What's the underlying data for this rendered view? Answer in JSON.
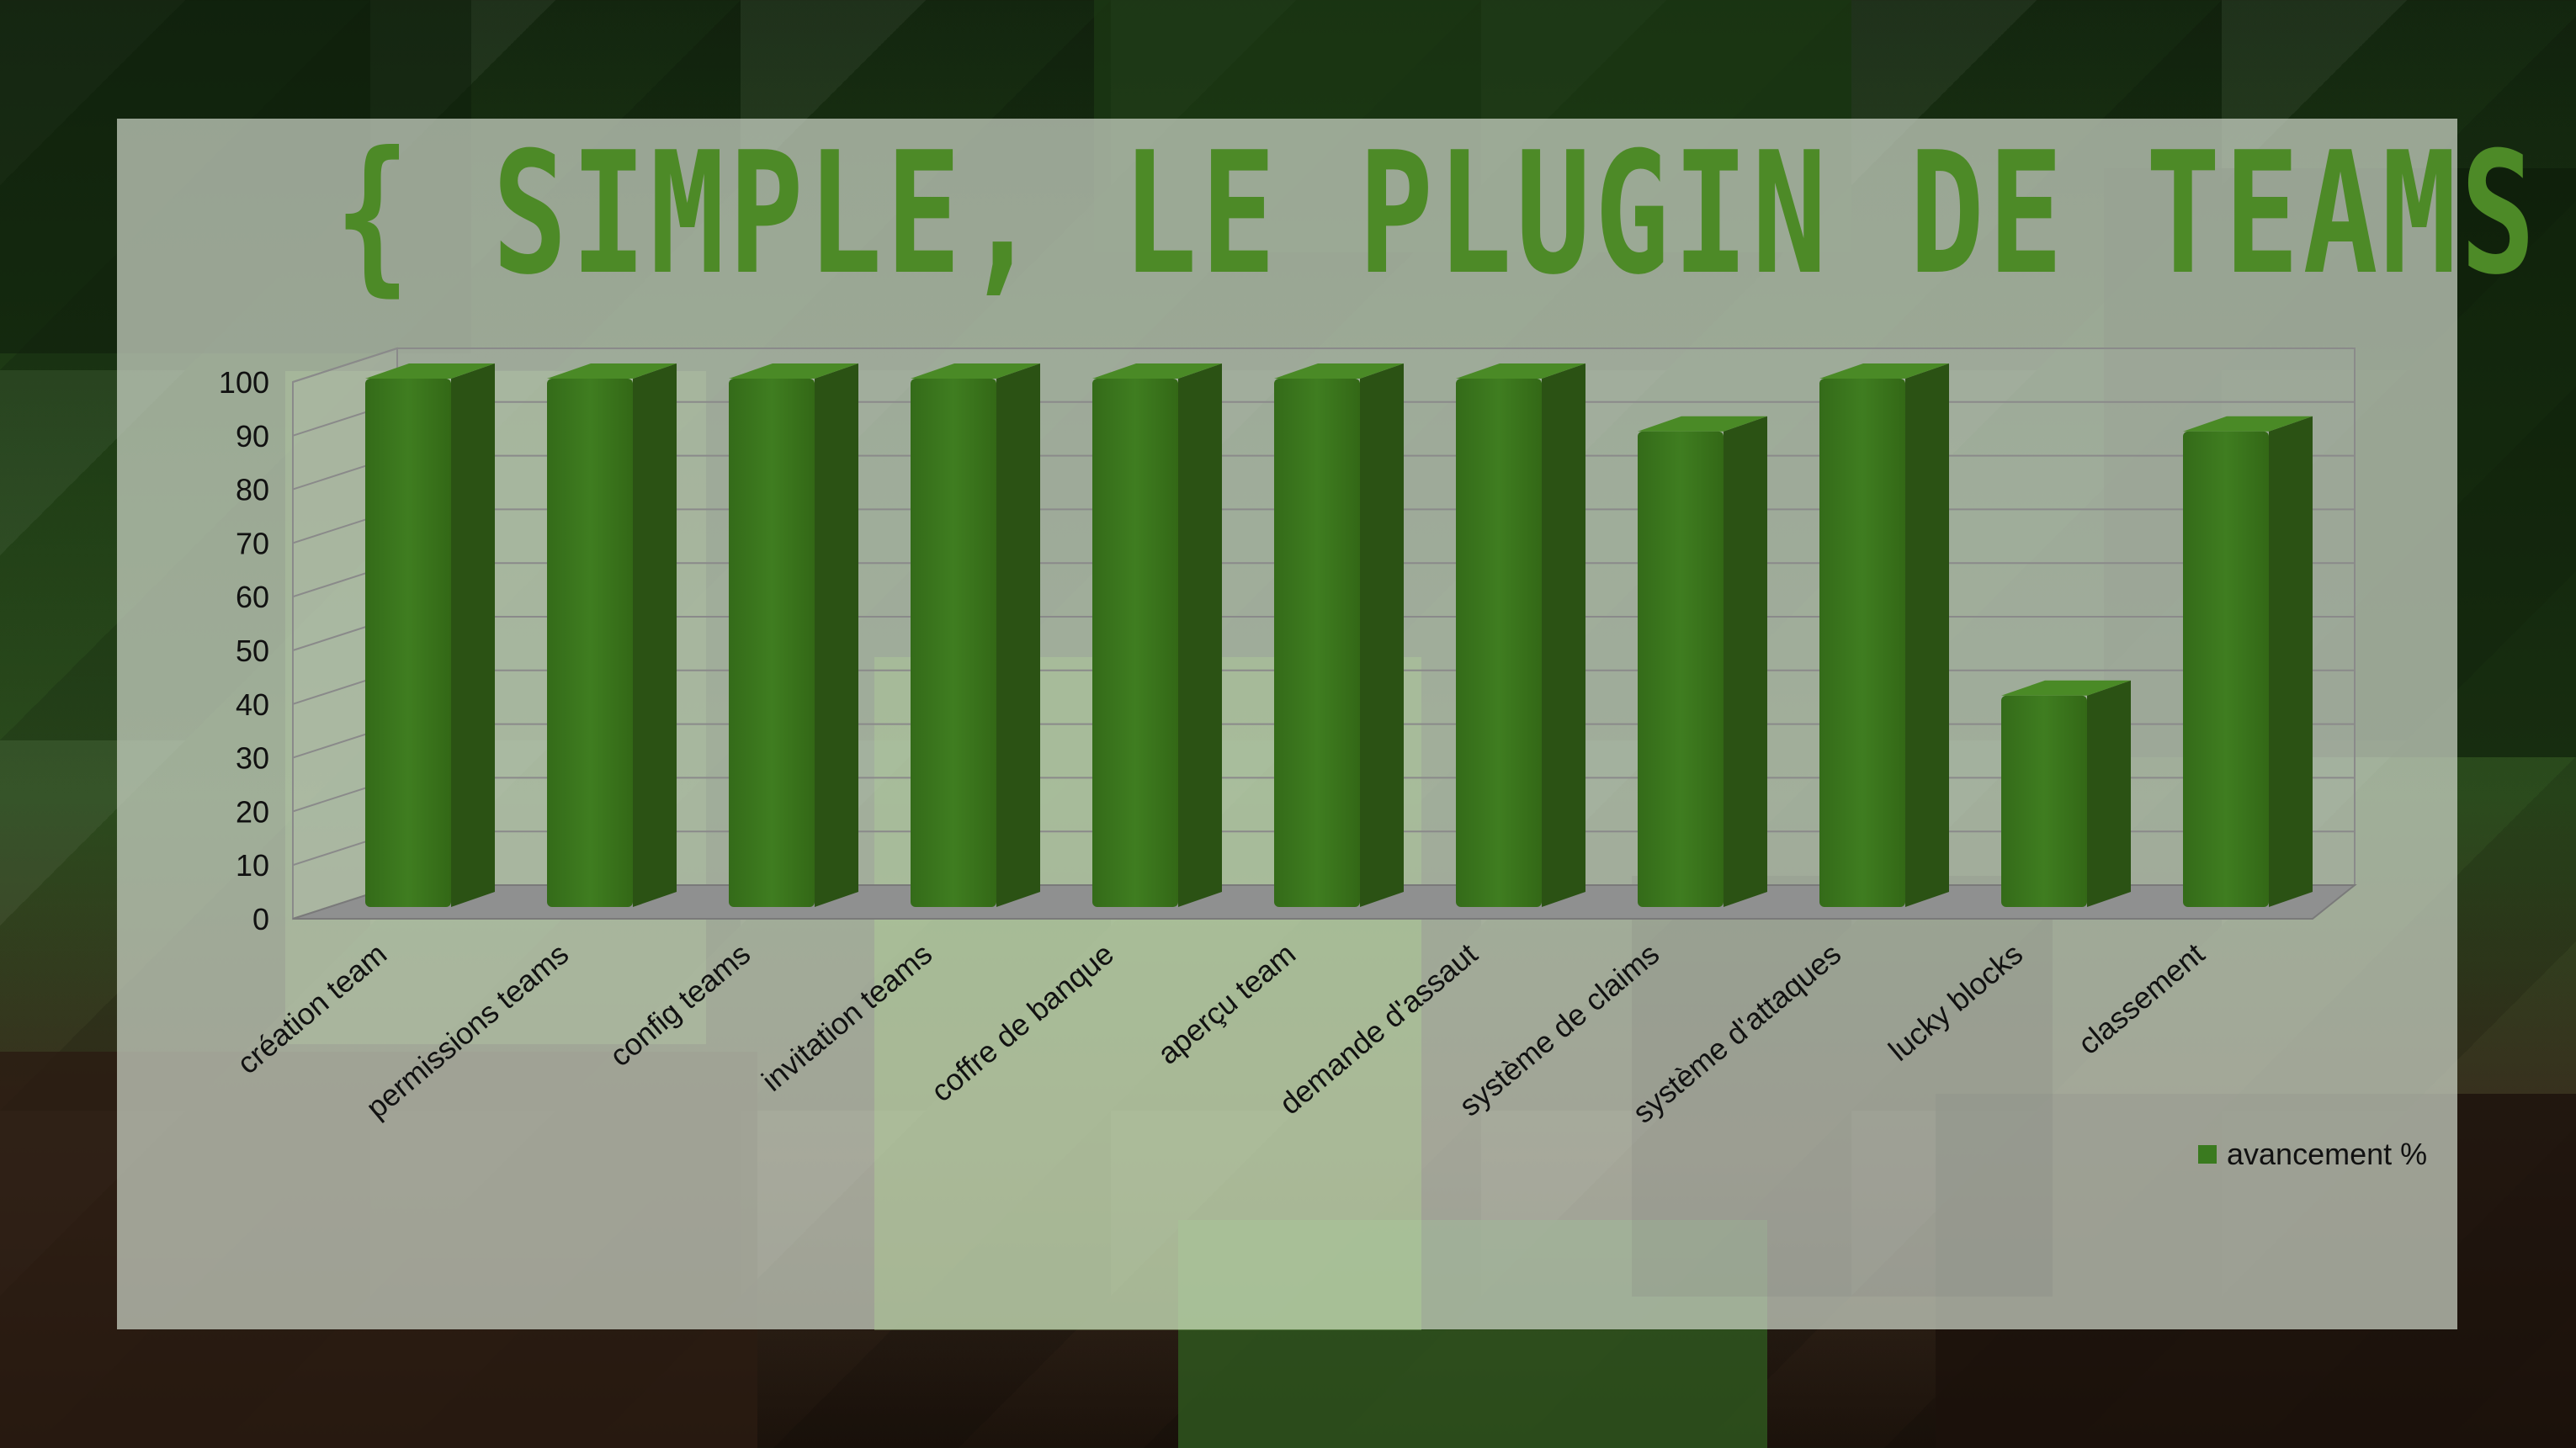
{
  "chart_data": {
    "type": "bar",
    "title": "{ SIMPLE, LE PLUGIN DE TEAMS }",
    "categories": [
      "création team",
      "permissions teams",
      "config teams",
      "invitation teams",
      "coffre de banque",
      "aperçu team",
      "demande d'assaut",
      "système de claims",
      "système d'attaques",
      "lucky blocks",
      "classement"
    ],
    "series": [
      {
        "name": "avancement %",
        "values": [
          100,
          100,
          100,
          100,
          100,
          100,
          100,
          90,
          100,
          40,
          90
        ]
      }
    ],
    "yticks": [
      0,
      10,
      20,
      30,
      40,
      50,
      60,
      70,
      80,
      90,
      100
    ],
    "ylim": [
      0,
      100
    ],
    "xlabel": "",
    "ylabel": "",
    "grid": true,
    "legend_position": "bottom-right",
    "colors": {
      "bar_front": "#3d7a1e",
      "bar_side": "#2b5214",
      "bar_top": "#4a8a26",
      "title": "#4d8a27"
    }
  }
}
